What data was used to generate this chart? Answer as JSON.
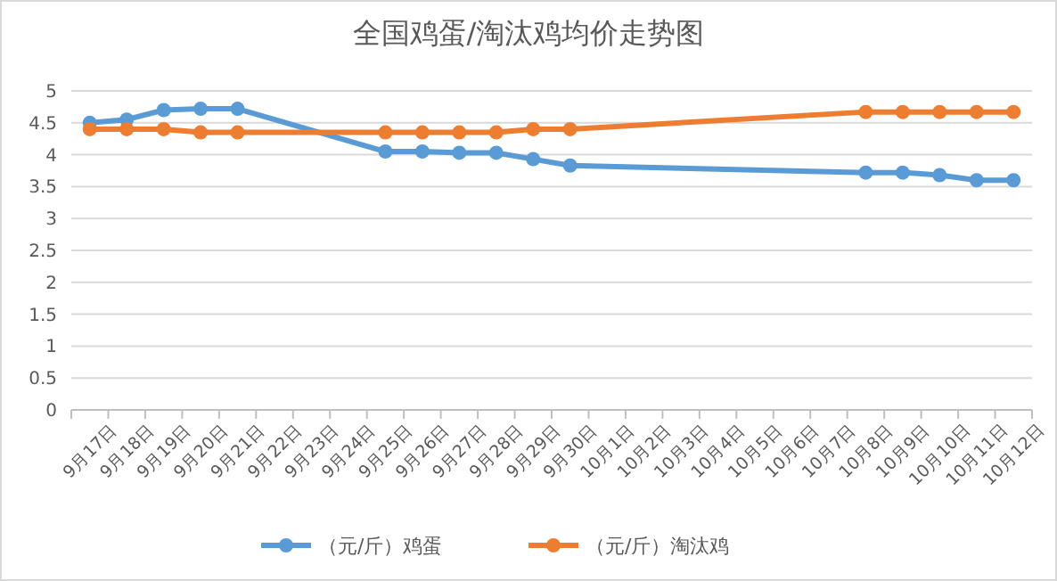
{
  "chart_data": {
    "type": "line",
    "title": "全国鸡蛋/淘汰鸡均价走势图",
    "categories": [
      "9月17日",
      "9月18日",
      "9月19日",
      "9月20日",
      "9月21日",
      "9月22日",
      "9月23日",
      "9月24日",
      "9月25日",
      "9月26日",
      "9月27日",
      "9月28日",
      "9月29日",
      "9月30日",
      "10月1日",
      "10月2日",
      "10月3日",
      "10月4日",
      "10月5日",
      "10月6日",
      "10月7日",
      "10月8日",
      "10月9日",
      "10月10日",
      "10月11日",
      "10月12日"
    ],
    "series": [
      {
        "name": "（元/斤）鸡蛋",
        "color": "#5b9bd5",
        "values": [
          4.5,
          4.55,
          4.7,
          4.72,
          4.72,
          null,
          null,
          null,
          4.05,
          4.05,
          4.03,
          4.03,
          3.93,
          3.83,
          null,
          null,
          null,
          null,
          null,
          null,
          null,
          3.72,
          3.72,
          3.68,
          3.6,
          3.6
        ]
      },
      {
        "name": "（元/斤）淘汰鸡",
        "color": "#ed7d31",
        "values": [
          4.4,
          4.4,
          4.4,
          4.35,
          4.35,
          null,
          null,
          null,
          4.35,
          4.35,
          4.35,
          4.35,
          4.4,
          4.4,
          null,
          null,
          null,
          null,
          null,
          null,
          null,
          4.67,
          4.67,
          4.67,
          4.67,
          4.67
        ]
      }
    ],
    "ylim": [
      0,
      5
    ],
    "yticks": [
      0,
      0.5,
      1,
      1.5,
      2,
      2.5,
      3,
      3.5,
      4,
      4.5,
      5
    ],
    "grid": "y",
    "legend": "bottom",
    "marker": "circle",
    "line_style": "solid"
  }
}
